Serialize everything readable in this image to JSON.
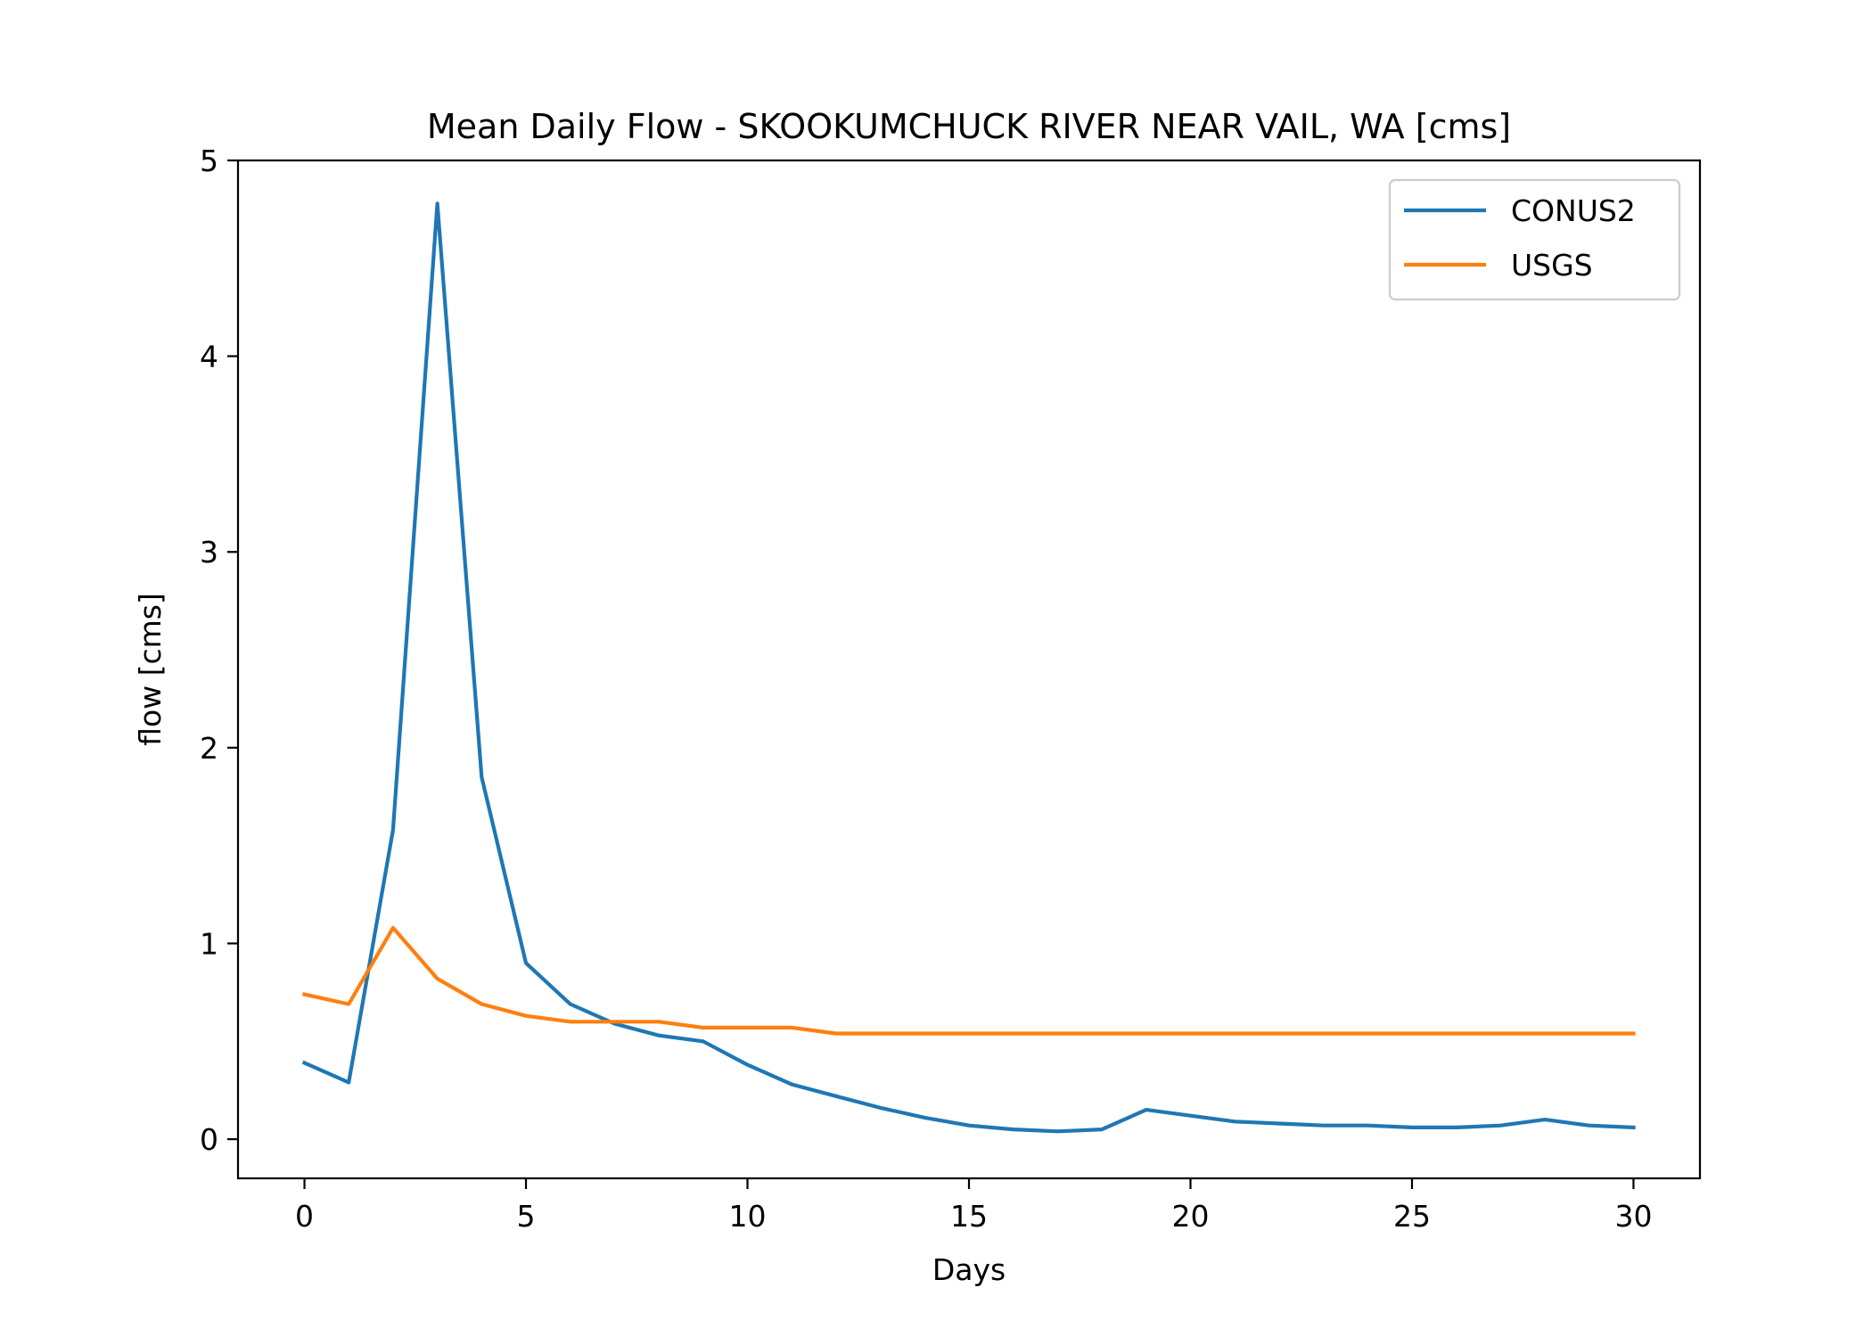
{
  "chart_data": {
    "type": "line",
    "title": "Mean Daily Flow - SKOOKUMCHUCK RIVER NEAR VAIL, WA [cms]",
    "xlabel": "Days",
    "ylabel": "flow [cms]",
    "xlim": [
      -1.5,
      31.5
    ],
    "ylim": [
      -0.2,
      5.0
    ],
    "xticks": [
      0,
      5,
      10,
      15,
      20,
      25,
      30
    ],
    "yticks": [
      0,
      1,
      2,
      3,
      4,
      5
    ],
    "grid": false,
    "legend_position": "top-right",
    "x": [
      0,
      1,
      2,
      3,
      4,
      5,
      6,
      7,
      8,
      9,
      10,
      11,
      12,
      13,
      14,
      15,
      16,
      17,
      18,
      19,
      20,
      21,
      22,
      23,
      24,
      25,
      26,
      27,
      28,
      29,
      30
    ],
    "series": [
      {
        "name": "CONUS2",
        "color": "#1f77b4",
        "values": [
          0.39,
          0.29,
          1.58,
          4.78,
          1.85,
          0.9,
          0.69,
          0.59,
          0.53,
          0.5,
          0.38,
          0.28,
          0.22,
          0.16,
          0.11,
          0.07,
          0.05,
          0.04,
          0.05,
          0.15,
          0.12,
          0.09,
          0.08,
          0.07,
          0.07,
          0.06,
          0.06,
          0.07,
          0.1,
          0.07,
          0.06
        ]
      },
      {
        "name": "USGS",
        "color": "#ff7f0e",
        "values": [
          0.74,
          0.69,
          1.08,
          0.82,
          0.69,
          0.63,
          0.6,
          0.6,
          0.6,
          0.57,
          0.57,
          0.57,
          0.54,
          0.54,
          0.54,
          0.54,
          0.54,
          0.54,
          0.54,
          0.54,
          0.54,
          0.54,
          0.54,
          0.54,
          0.54,
          0.54,
          0.54,
          0.54,
          0.54,
          0.54,
          0.54
        ]
      }
    ]
  }
}
